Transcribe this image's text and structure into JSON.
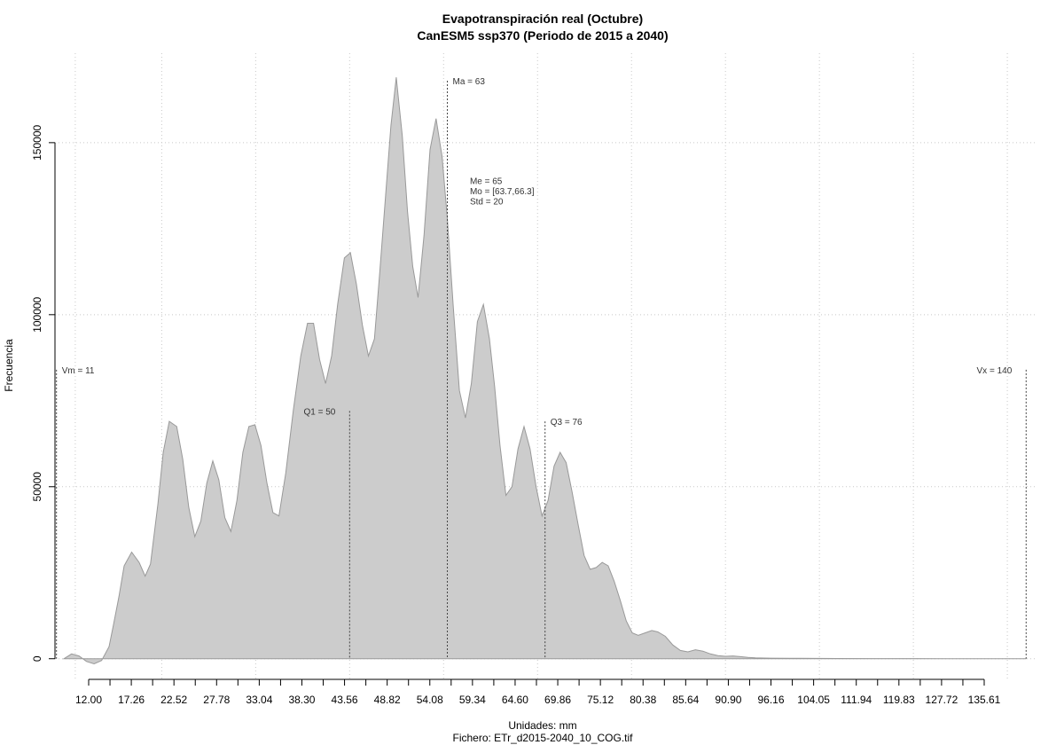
{
  "chart_data": {
    "type": "area",
    "title": "Evapotranspiración real (Octubre)",
    "subtitle": "CanESM5 ssp370 (Periodo de 2015 a 2040)",
    "xlabel": "Unidades: mm",
    "caption": "Fichero: ETr_d2015-2040_10_COG.tif",
    "ylabel": "Frecuencia",
    "xlim": [
      10.8,
      141.5
    ],
    "ylim": [
      -6000,
      176000
    ],
    "x_ticks": [
      "12.00",
      "17.26",
      "22.52",
      "27.78",
      "33.04",
      "38.30",
      "43.56",
      "48.82",
      "54.08",
      "59.34",
      "64.60",
      "69.86",
      "75.12",
      "80.38",
      "85.64",
      "90.90",
      "96.16",
      "104.05",
      "111.94",
      "119.83",
      "127.72",
      "135.61"
    ],
    "y_ticks": [
      0,
      50000,
      100000,
      150000
    ],
    "y_tick_labels": [
      "0",
      "50000",
      "100000",
      "150000"
    ],
    "grid": true,
    "series": [
      {
        "fill": "#cccccc",
        "stroke": "#999999",
        "points": [
          [
            12.0,
            0
          ],
          [
            13.0,
            1400
          ],
          [
            14.0,
            800
          ],
          [
            15.0,
            -800
          ],
          [
            16.0,
            -1500
          ],
          [
            17.0,
            -500
          ],
          [
            18.0,
            3500
          ],
          [
            18.6,
            10000
          ],
          [
            19.3,
            18000
          ],
          [
            20.0,
            27000
          ],
          [
            21.0,
            31000
          ],
          [
            22.0,
            28000
          ],
          [
            22.8,
            24000
          ],
          [
            23.5,
            27500
          ],
          [
            24.5,
            45000
          ],
          [
            25.2,
            60000
          ],
          [
            26.0,
            69000
          ],
          [
            27.0,
            67500
          ],
          [
            27.8,
            58000
          ],
          [
            28.6,
            44000
          ],
          [
            29.4,
            35500
          ],
          [
            30.2,
            40000
          ],
          [
            31.0,
            51000
          ],
          [
            31.8,
            57500
          ],
          [
            32.6,
            52000
          ],
          [
            33.4,
            41000
          ],
          [
            34.2,
            37000
          ],
          [
            35.0,
            46000
          ],
          [
            35.8,
            60000
          ],
          [
            36.6,
            67500
          ],
          [
            37.4,
            68000
          ],
          [
            38.2,
            62000
          ],
          [
            39.0,
            51000
          ],
          [
            39.8,
            42500
          ],
          [
            40.6,
            41500
          ],
          [
            41.5,
            54000
          ],
          [
            42.5,
            72000
          ],
          [
            43.5,
            88000
          ],
          [
            44.4,
            97500
          ],
          [
            45.2,
            97500
          ],
          [
            46.0,
            87000
          ],
          [
            46.8,
            80000
          ],
          [
            47.6,
            88000
          ],
          [
            48.4,
            103000
          ],
          [
            49.3,
            116500
          ],
          [
            50.1,
            118000
          ],
          [
            50.9,
            109000
          ],
          [
            51.7,
            97000
          ],
          [
            52.5,
            88000
          ],
          [
            53.3,
            93000
          ],
          [
            54.0,
            112000
          ],
          [
            54.8,
            135000
          ],
          [
            55.5,
            155000
          ],
          [
            56.2,
            169000
          ],
          [
            57.0,
            152000
          ],
          [
            57.7,
            130000
          ],
          [
            58.4,
            114000
          ],
          [
            59.1,
            105000
          ],
          [
            59.9,
            123000
          ],
          [
            60.7,
            148000
          ],
          [
            61.5,
            157000
          ],
          [
            62.3,
            146000
          ],
          [
            63.0,
            128000
          ],
          [
            63.8,
            102000
          ],
          [
            64.6,
            78000
          ],
          [
            65.4,
            70000
          ],
          [
            66.2,
            80000
          ],
          [
            67.0,
            98000
          ],
          [
            67.8,
            103000
          ],
          [
            68.6,
            93000
          ],
          [
            69.3,
            79000
          ],
          [
            70.0,
            62000
          ],
          [
            70.8,
            47500
          ],
          [
            71.6,
            50000
          ],
          [
            72.4,
            61000
          ],
          [
            73.2,
            67500
          ],
          [
            74.0,
            61000
          ],
          [
            74.8,
            50000
          ],
          [
            75.6,
            41500
          ],
          [
            76.4,
            46000
          ],
          [
            77.2,
            56000
          ],
          [
            78.0,
            60000
          ],
          [
            78.8,
            57000
          ],
          [
            79.6,
            48500
          ],
          [
            80.4,
            39000
          ],
          [
            81.2,
            30000
          ],
          [
            82.0,
            26000
          ],
          [
            82.8,
            26500
          ],
          [
            83.6,
            28000
          ],
          [
            84.4,
            27000
          ],
          [
            85.2,
            22500
          ],
          [
            86.0,
            17000
          ],
          [
            86.8,
            11000
          ],
          [
            87.6,
            7500
          ],
          [
            88.4,
            6800
          ],
          [
            89.3,
            7500
          ],
          [
            90.2,
            8200
          ],
          [
            91.0,
            7800
          ],
          [
            92.0,
            6500
          ],
          [
            93.0,
            4000
          ],
          [
            94.0,
            2400
          ],
          [
            95.0,
            2000
          ],
          [
            96.0,
            2600
          ],
          [
            97.0,
            2200
          ],
          [
            98.0,
            1400
          ],
          [
            99.0,
            900
          ],
          [
            100.0,
            700
          ],
          [
            101.0,
            800
          ],
          [
            102.0,
            600
          ],
          [
            103.0,
            400
          ],
          [
            104.0,
            250
          ],
          [
            106.0,
            150
          ],
          [
            110.0,
            100
          ],
          [
            115.0,
            60
          ],
          [
            120.0,
            40
          ],
          [
            125.0,
            20
          ],
          [
            130.0,
            10
          ],
          [
            135.0,
            0
          ],
          [
            140.0,
            0
          ]
        ]
      }
    ],
    "annotations": [
      {
        "label": "Vm = 11",
        "x": 11,
        "top": 84000,
        "anchor": "start"
      },
      {
        "label": "Q1 = 50",
        "x": 50,
        "top": 72000,
        "anchor": "end"
      },
      {
        "label": "Ma = 63",
        "x": 63,
        "top": 168000,
        "anchor": "start"
      },
      {
        "label": "Q3 = 76",
        "x": 76,
        "top": 69000,
        "anchor": "start"
      },
      {
        "label": "Vx = 140",
        "x": 140,
        "top": 84000,
        "anchor": "end"
      }
    ],
    "stats_text": [
      "Me = 65",
      "Mo = [63.7,66.3]",
      "Std = 20"
    ],
    "stats_pos": {
      "x": 66.0,
      "y": 138000
    }
  }
}
